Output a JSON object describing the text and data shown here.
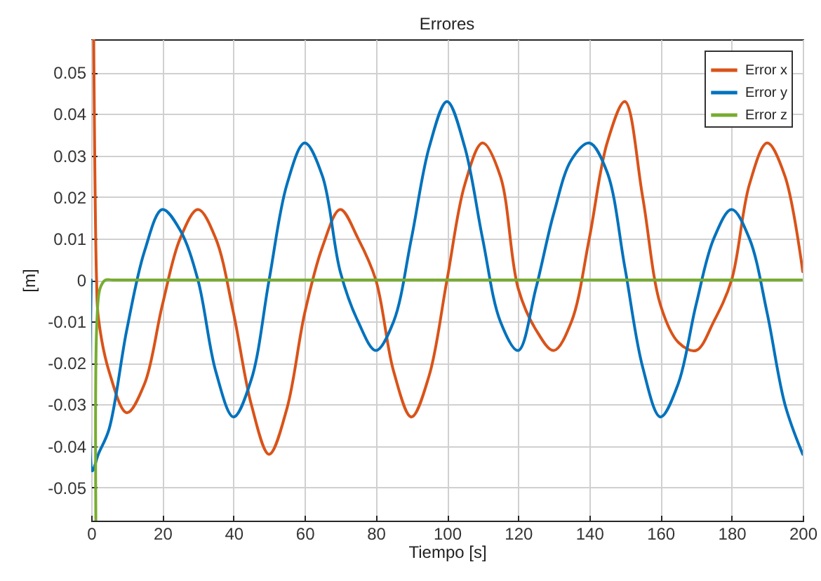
{
  "chart_data": {
    "type": "line",
    "title": "Errores",
    "xlabel": "Tiempo [s]",
    "ylabel": "[m]",
    "xlim": [
      0,
      200
    ],
    "xticks": [
      0,
      20,
      40,
      60,
      80,
      100,
      120,
      140,
      160,
      180,
      200
    ],
    "ylim": [
      -0.058,
      0.058
    ],
    "yticks": [
      -0.05,
      -0.04,
      -0.03,
      -0.02,
      -0.01,
      0,
      0.01,
      0.02,
      0.03,
      0.04,
      0.05
    ],
    "grid": true,
    "legend": "top right",
    "line_style": "solid",
    "marker": "none",
    "series": [
      {
        "name": "Error x",
        "color": "#d95319",
        "x": [
          0.7,
          1.5,
          2,
          5,
          10,
          15,
          20,
          25,
          30,
          35,
          40,
          45,
          50,
          55,
          60,
          65,
          70,
          75,
          80,
          85,
          90,
          95,
          100,
          105,
          110,
          115,
          120,
          125,
          130,
          135,
          140,
          145,
          150,
          155,
          160,
          165,
          170,
          175,
          180,
          185,
          190,
          195,
          200
        ],
        "values": [
          0.058,
          0,
          -0.009,
          -0.022,
          -0.032,
          -0.025,
          -0.006,
          0.01,
          0.017,
          0.01,
          -0.008,
          -0.03,
          -0.042,
          -0.031,
          -0.008,
          0.008,
          0.017,
          0.01,
          0,
          -0.022,
          -0.033,
          -0.023,
          0,
          0.023,
          0.033,
          0.025,
          -0.002,
          -0.012,
          -0.017,
          -0.01,
          0.01,
          0.033,
          0.043,
          0.02,
          -0.006,
          -0.015,
          -0.017,
          -0.01,
          0,
          0.023,
          0.033,
          0.025,
          0.002
        ]
      },
      {
        "name": "Error y",
        "color": "#0072bd",
        "x": [
          0,
          0.3,
          2,
          5,
          10,
          15,
          20,
          25,
          30,
          35,
          40,
          45,
          50,
          55,
          60,
          65,
          70,
          75,
          80,
          85,
          90,
          95,
          100,
          105,
          110,
          115,
          120,
          125,
          130,
          135,
          140,
          145,
          150,
          155,
          160,
          165,
          170,
          175,
          180,
          185,
          190,
          195,
          200
        ],
        "values": [
          0,
          -0.046,
          -0.042,
          -0.036,
          -0.012,
          0.007,
          0.017,
          0.012,
          0,
          -0.022,
          -0.033,
          -0.024,
          0,
          0.023,
          0.033,
          0.025,
          0.002,
          -0.01,
          -0.017,
          -0.01,
          0.01,
          0.032,
          0.043,
          0.032,
          0.01,
          -0.01,
          -0.017,
          -0.002,
          0.016,
          0.029,
          0.033,
          0.026,
          0.003,
          -0.021,
          -0.033,
          -0.025,
          -0.006,
          0.01,
          0.017,
          0.01,
          -0.008,
          -0.03,
          -0.042
        ]
      },
      {
        "name": "Error z",
        "color": "#77ac30",
        "x": [
          1.3,
          1.6,
          2.5,
          4,
          6,
          10,
          100,
          200
        ],
        "values": [
          -0.058,
          -0.01,
          -0.002,
          0,
          0,
          0,
          0,
          0
        ]
      }
    ]
  }
}
